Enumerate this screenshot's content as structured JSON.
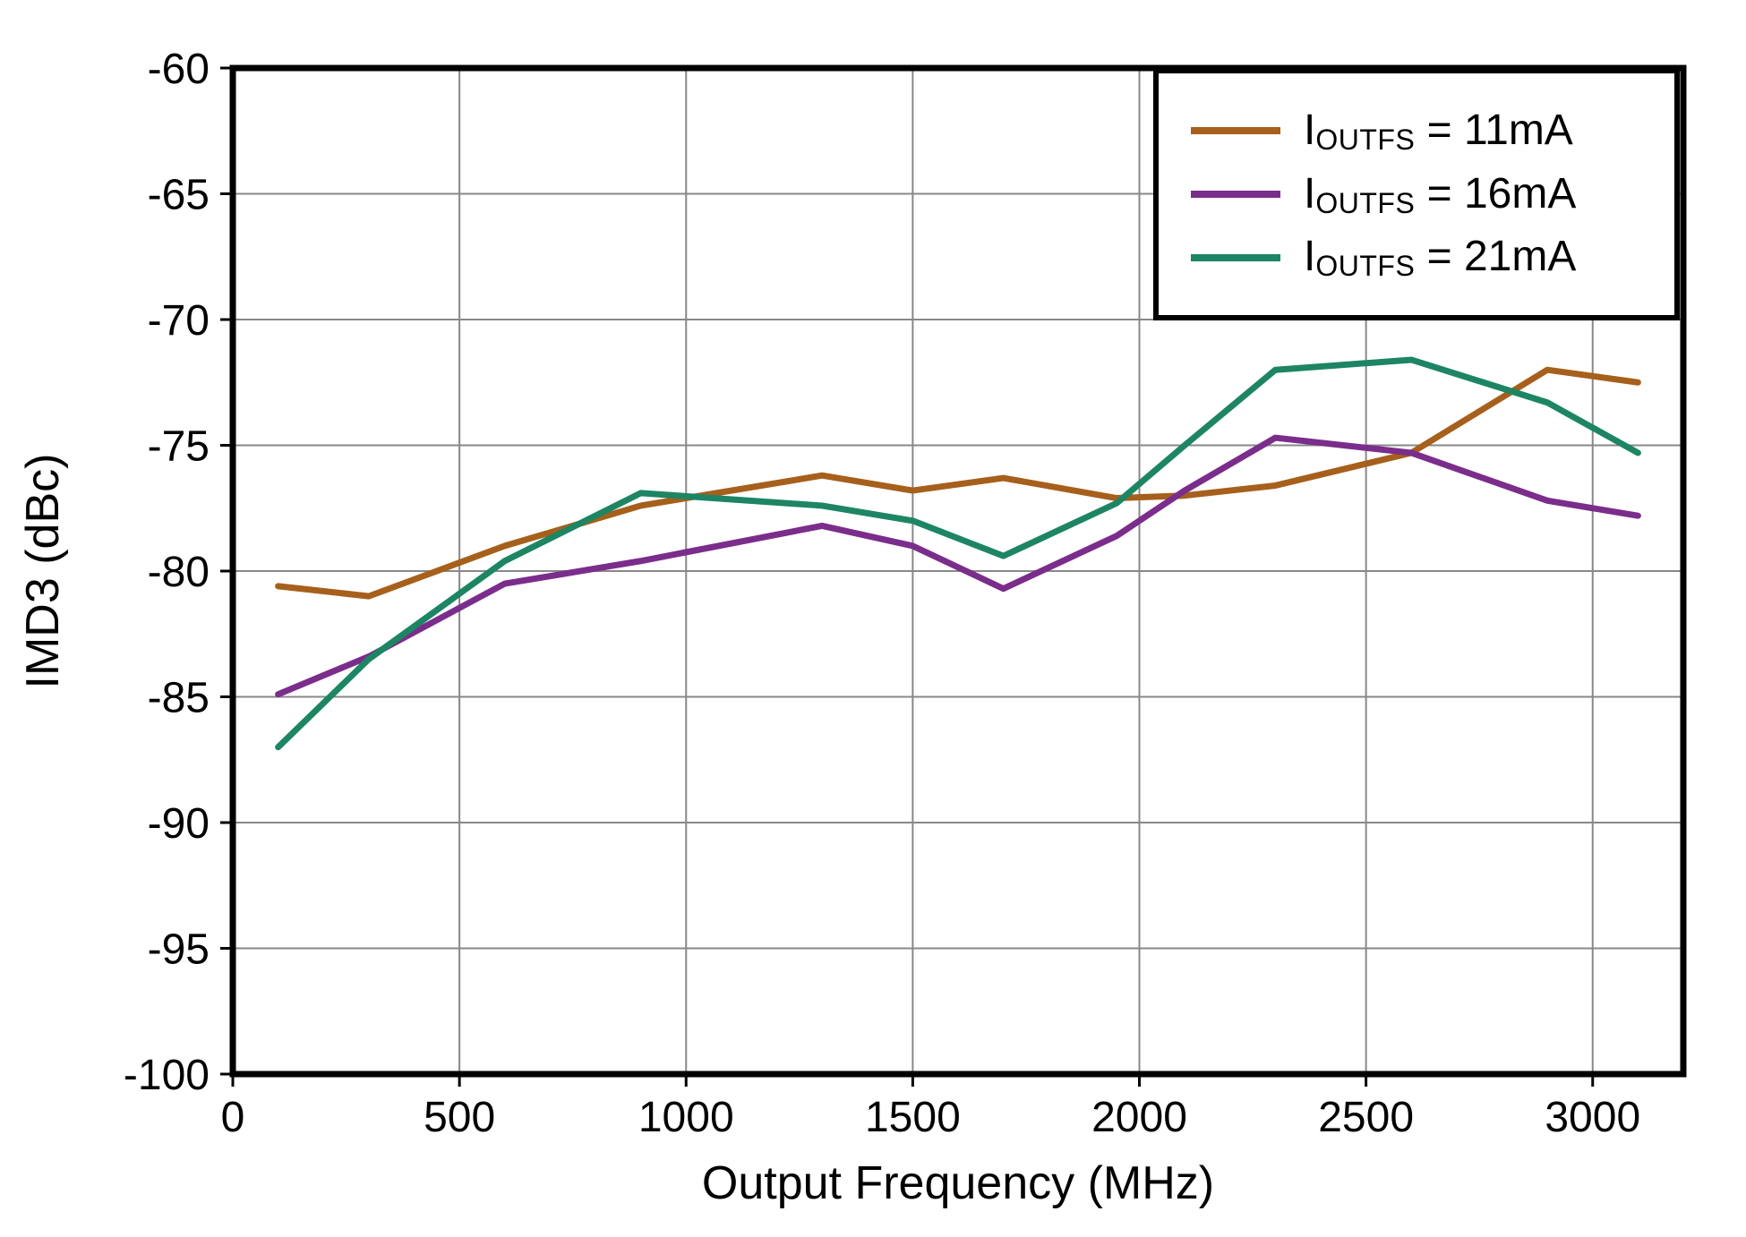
{
  "chart_data": {
    "type": "line",
    "title": "",
    "xlabel": "Output Frequency (MHz)",
    "ylabel": "IMD3 (dBc)",
    "xlim": [
      0,
      3200
    ],
    "ylim": [
      -100,
      -60
    ],
    "x_ticks": [
      0,
      500,
      1000,
      1500,
      2000,
      2500,
      3000
    ],
    "y_ticks": [
      -100,
      -95,
      -90,
      -85,
      -80,
      -75,
      -70,
      -65,
      -60
    ],
    "grid": true,
    "grid_color": "#888888",
    "axis_color": "#000000",
    "legend_position": "top-right",
    "x": [
      100,
      300,
      600,
      900,
      1300,
      1500,
      1700,
      1950,
      2100,
      2300,
      2600,
      2900,
      3100
    ],
    "series": [
      {
        "name": "IOUTFS = 11mA",
        "legend_base": "I",
        "legend_sub": "OUTFS",
        "legend_rest": " = 11mA",
        "color": "#A6601C",
        "values": [
          -80.6,
          -81.0,
          -79.0,
          -77.4,
          -76.2,
          -76.8,
          -76.3,
          -77.1,
          -77.0,
          -76.6,
          -75.3,
          -72.0,
          -72.5
        ]
      },
      {
        "name": "IOUTFS = 16mA",
        "legend_base": "I",
        "legend_sub": "OUTFS",
        "legend_rest": " = 16mA",
        "color": "#7B2D8B",
        "values": [
          -84.9,
          -83.4,
          -80.5,
          -79.6,
          -78.2,
          -79.0,
          -80.7,
          -78.6,
          -76.8,
          -74.7,
          -75.3,
          -77.2,
          -77.8
        ]
      },
      {
        "name": "IOUTFS = 21mA",
        "legend_base": "I",
        "legend_sub": "OUTFS",
        "legend_rest": " = 21mA",
        "color": "#1D8564",
        "values": [
          -87.0,
          -83.5,
          -79.6,
          -76.9,
          -77.4,
          -78.0,
          -79.4,
          -77.3,
          -75.0,
          -72.0,
          -71.6,
          -73.3,
          -75.3
        ]
      }
    ]
  }
}
